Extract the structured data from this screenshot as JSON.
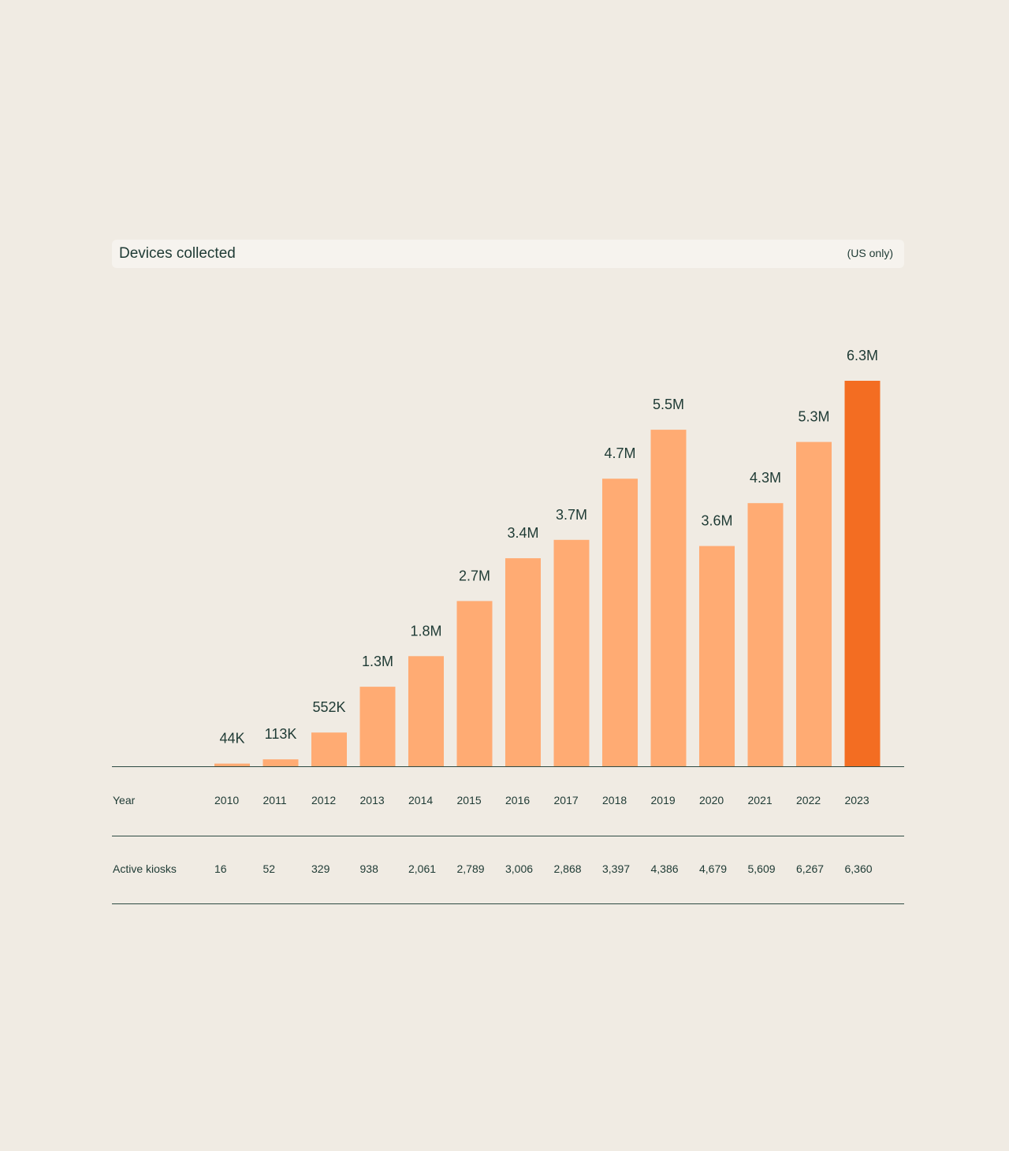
{
  "header": {
    "title": "Devices collected",
    "note": "(US only)"
  },
  "chart_data": {
    "type": "bar",
    "title": "Devices collected",
    "subtitle": "(US only)",
    "categories": [
      "2010",
      "2011",
      "2012",
      "2013",
      "2014",
      "2015",
      "2016",
      "2017",
      "2018",
      "2019",
      "2020",
      "2021",
      "2022",
      "2023"
    ],
    "values": [
      44000,
      113000,
      552000,
      1300000,
      1800000,
      2700000,
      3400000,
      3700000,
      4700000,
      5500000,
      3600000,
      4300000,
      5300000,
      6300000
    ],
    "data_labels": [
      "44K",
      "113K",
      "552K",
      "1.3M",
      "1.8M",
      "2.7M",
      "3.4M",
      "3.7M",
      "4.7M",
      "5.5M",
      "3.6M",
      "4.3M",
      "5.3M",
      "6.3M"
    ],
    "highlight_index": 13,
    "ylim": [
      0,
      6300000
    ],
    "xlabel": "Year",
    "ylabel": "",
    "grid": false,
    "colors": {
      "bar": "#ffab73",
      "highlight": "#f36d22",
      "text": "#1e3a34"
    }
  },
  "table": {
    "year_label": "Year",
    "kiosks_label": "Active kiosks",
    "years": [
      "2010",
      "2011",
      "2012",
      "2013",
      "2014",
      "2015",
      "2016",
      "2017",
      "2018",
      "2019",
      "2020",
      "2021",
      "2022",
      "2023"
    ],
    "kiosks": [
      "16",
      "52",
      "329",
      "938",
      "2,061",
      "2,789",
      "3,006",
      "2,868",
      "3,397",
      "4,386",
      "4,679",
      "5,609",
      "6,267",
      "6,360"
    ]
  }
}
